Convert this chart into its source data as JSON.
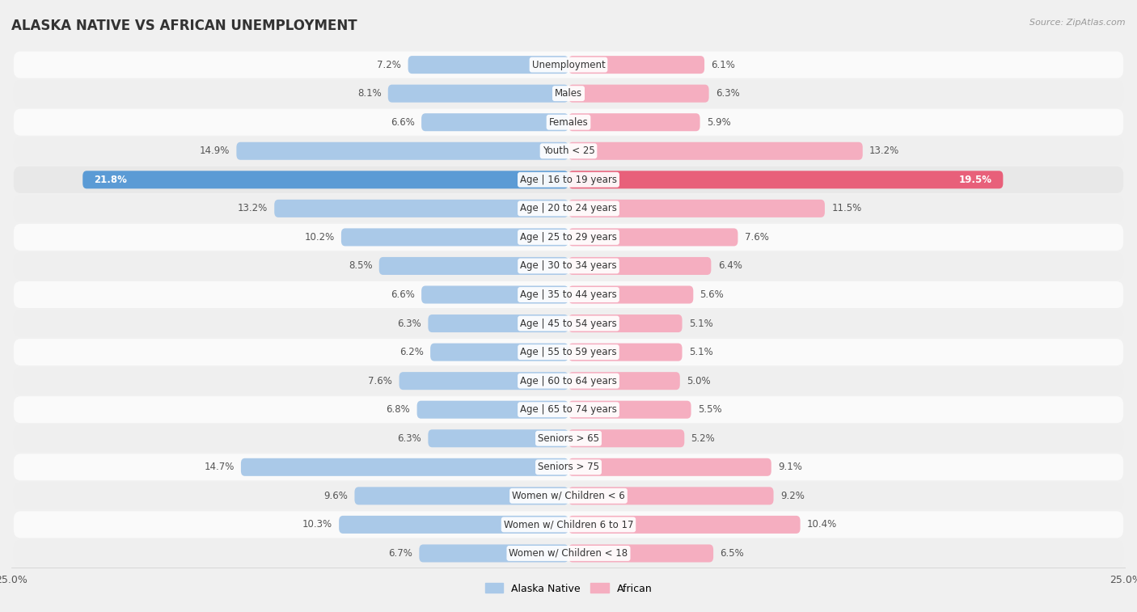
{
  "title": "ALASKA NATIVE VS AFRICAN UNEMPLOYMENT",
  "source": "Source: ZipAtlas.com",
  "categories": [
    "Unemployment",
    "Males",
    "Females",
    "Youth < 25",
    "Age | 16 to 19 years",
    "Age | 20 to 24 years",
    "Age | 25 to 29 years",
    "Age | 30 to 34 years",
    "Age | 35 to 44 years",
    "Age | 45 to 54 years",
    "Age | 55 to 59 years",
    "Age | 60 to 64 years",
    "Age | 65 to 74 years",
    "Seniors > 65",
    "Seniors > 75",
    "Women w/ Children < 6",
    "Women w/ Children 6 to 17",
    "Women w/ Children < 18"
  ],
  "alaska_native": [
    7.2,
    8.1,
    6.6,
    14.9,
    21.8,
    13.2,
    10.2,
    8.5,
    6.6,
    6.3,
    6.2,
    7.6,
    6.8,
    6.3,
    14.7,
    9.6,
    10.3,
    6.7
  ],
  "african": [
    6.1,
    6.3,
    5.9,
    13.2,
    19.5,
    11.5,
    7.6,
    6.4,
    5.6,
    5.1,
    5.1,
    5.0,
    5.5,
    5.2,
    9.1,
    9.2,
    10.4,
    6.5
  ],
  "alaska_color_normal": "#aac9e8",
  "african_color_normal": "#f5aec0",
  "alaska_color_highlight": "#5b9bd5",
  "african_color_highlight": "#e8607a",
  "max_val": 25.0,
  "bg_color": "#f0f0f0",
  "row_color_light": "#fafafa",
  "row_color_dark": "#efefef",
  "highlight_row": 4,
  "legend_alaska": "Alaska Native",
  "legend_african": "African",
  "title_fontsize": 12,
  "label_fontsize": 8.5,
  "value_fontsize": 8.5,
  "tick_fontsize": 9,
  "source_fontsize": 8
}
